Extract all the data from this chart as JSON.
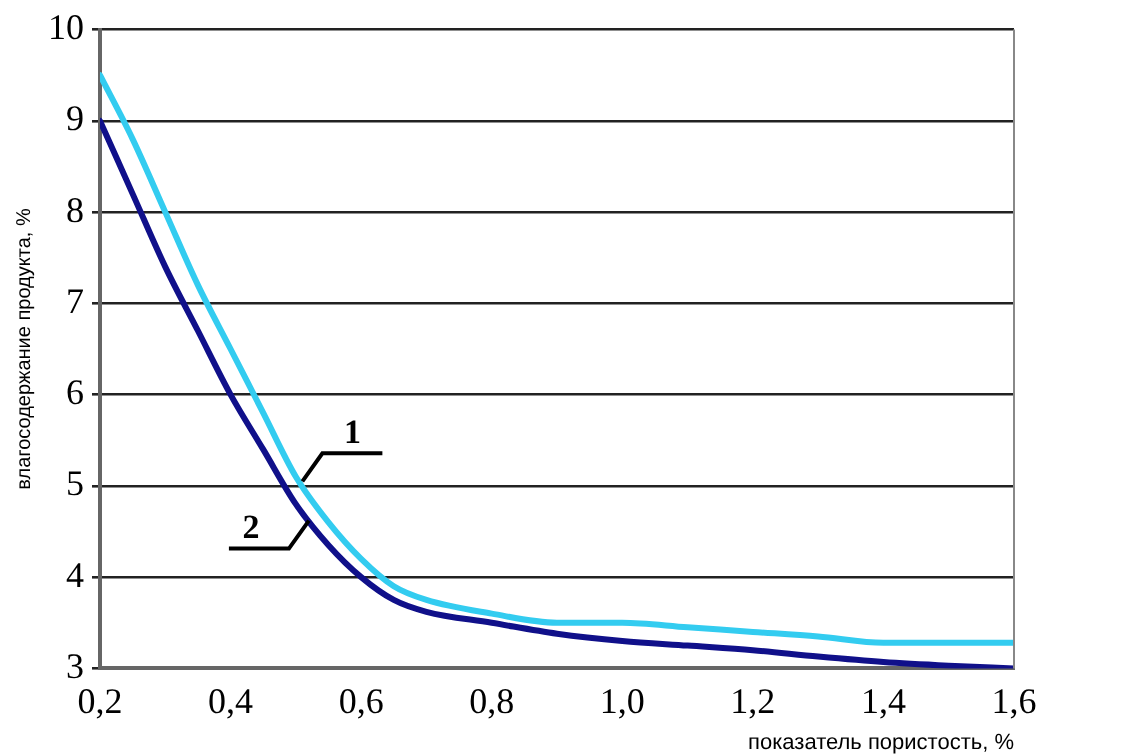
{
  "chart_data": {
    "type": "line",
    "xlabel": "показатель пористость, %",
    "ylabel": "влагосодержание продукта, %",
    "xlim": [
      0.2,
      1.6
    ],
    "xticks": [
      {
        "value": 0.2,
        "label": "0,2"
      },
      {
        "value": 0.4,
        "label": "0,4"
      },
      {
        "value": 0.6,
        "label": "0,6"
      },
      {
        "value": 0.8,
        "label": "0,8"
      },
      {
        "value": 1.0,
        "label": "1,0"
      },
      {
        "value": 1.2,
        "label": "1,2"
      },
      {
        "value": 1.4,
        "label": "1,4"
      },
      {
        "value": 1.6,
        "label": "1,6"
      }
    ],
    "ylim": [
      3,
      10
    ],
    "yticks": [
      3,
      4,
      5,
      6,
      7,
      8,
      9,
      10
    ],
    "grid": "y",
    "legend": false,
    "marker": "none",
    "line_style": "solid",
    "x": [
      0.2,
      0.25,
      0.3,
      0.35,
      0.4,
      0.45,
      0.5,
      0.55,
      0.6,
      0.65,
      0.7,
      0.8,
      0.9,
      1.0,
      1.1,
      1.2,
      1.3,
      1.4,
      1.5,
      1.6
    ],
    "series": [
      {
        "color": "#33ccf0",
        "values": [
          9.5,
          8.8,
          8.0,
          7.2,
          6.5,
          5.8,
          5.1,
          4.6,
          4.2,
          3.9,
          3.75,
          3.6,
          3.5,
          3.5,
          3.45,
          3.4,
          3.35,
          3.28,
          3.28,
          3.28
        ]
      },
      {
        "color": "#10108a",
        "values": [
          9.0,
          8.2,
          7.4,
          6.7,
          6.0,
          5.4,
          4.8,
          4.35,
          4.0,
          3.75,
          3.62,
          3.5,
          3.38,
          3.3,
          3.25,
          3.2,
          3.13,
          3.07,
          3.03,
          3.0
        ]
      }
    ],
    "annotations": [
      {
        "text": "1",
        "x": 0.51,
        "y": 5.05
      },
      {
        "text": "2",
        "x": 0.52,
        "y": 4.62
      }
    ]
  }
}
